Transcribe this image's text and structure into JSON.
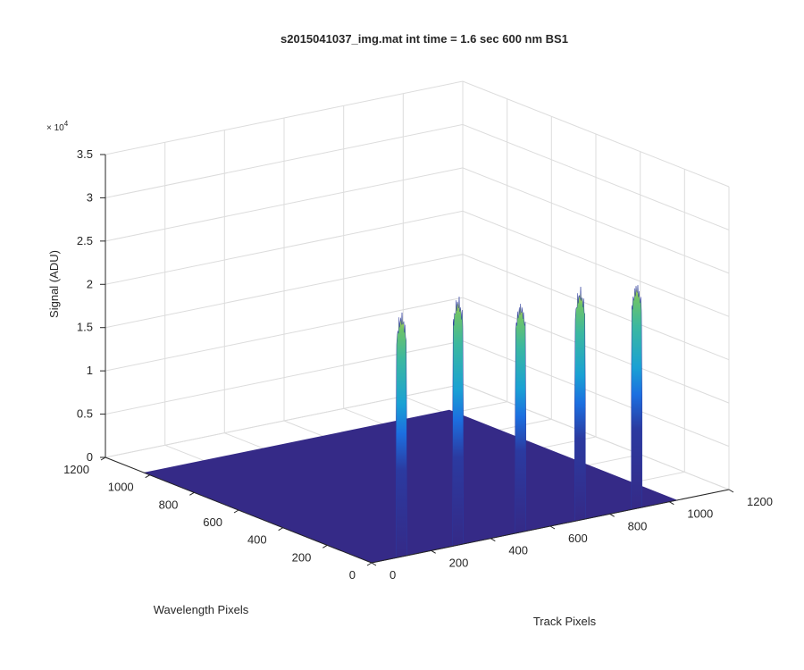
{
  "chart_data": {
    "type": "surface",
    "title": "s2015041037_img.mat int time = 1.6 sec  600 nm BS1",
    "xlabel": "Track Pixels",
    "ylabel": "Wavelength Pixels",
    "zlabel": "Signal (ADU)",
    "z_exponent_label": "× 10^4",
    "z_exponent_base": "× 10",
    "z_exponent_power": "4",
    "xlim": [
      0,
      1200
    ],
    "ylim": [
      0,
      1200
    ],
    "zlim": [
      0,
      35000
    ],
    "x_ticks": [
      "0",
      "200",
      "400",
      "600",
      "800",
      "1000",
      "1200"
    ],
    "y_ticks": [
      "0",
      "200",
      "400",
      "600",
      "800",
      "1000",
      "1200"
    ],
    "z_ticks": [
      "0",
      "0.5",
      "1",
      "1.5",
      "2",
      "2.5",
      "3",
      "3.5"
    ],
    "grid": true,
    "colormap": "parula",
    "colors": {
      "floor": "#352a87",
      "low": "#2b3aa0",
      "mid_blue": "#1c6fe0",
      "teal": "#1aa1d4",
      "cyan_green": "#3bb8a0",
      "green": "#6cc36a",
      "yellow": "#e5d83a"
    },
    "surface_extent": {
      "x": [
        0,
        1024
      ],
      "y": [
        0,
        1024
      ],
      "z_floor": 0
    },
    "peaks": [
      {
        "track_center": 100,
        "track_width": 36,
        "wavelength_range": [
          0,
          1024
        ],
        "max_signal": 28500
      },
      {
        "track_center": 290,
        "track_width": 36,
        "wavelength_range": [
          0,
          1024
        ],
        "max_signal": 29000
      },
      {
        "track_center": 500,
        "track_width": 36,
        "wavelength_range": [
          0,
          1024
        ],
        "max_signal": 26800
      },
      {
        "track_center": 700,
        "track_width": 36,
        "wavelength_range": [
          0,
          1024
        ],
        "max_signal": 27000
      },
      {
        "track_center": 890,
        "track_width": 36,
        "wavelength_range": [
          0,
          1024
        ],
        "max_signal": 26300
      }
    ]
  }
}
